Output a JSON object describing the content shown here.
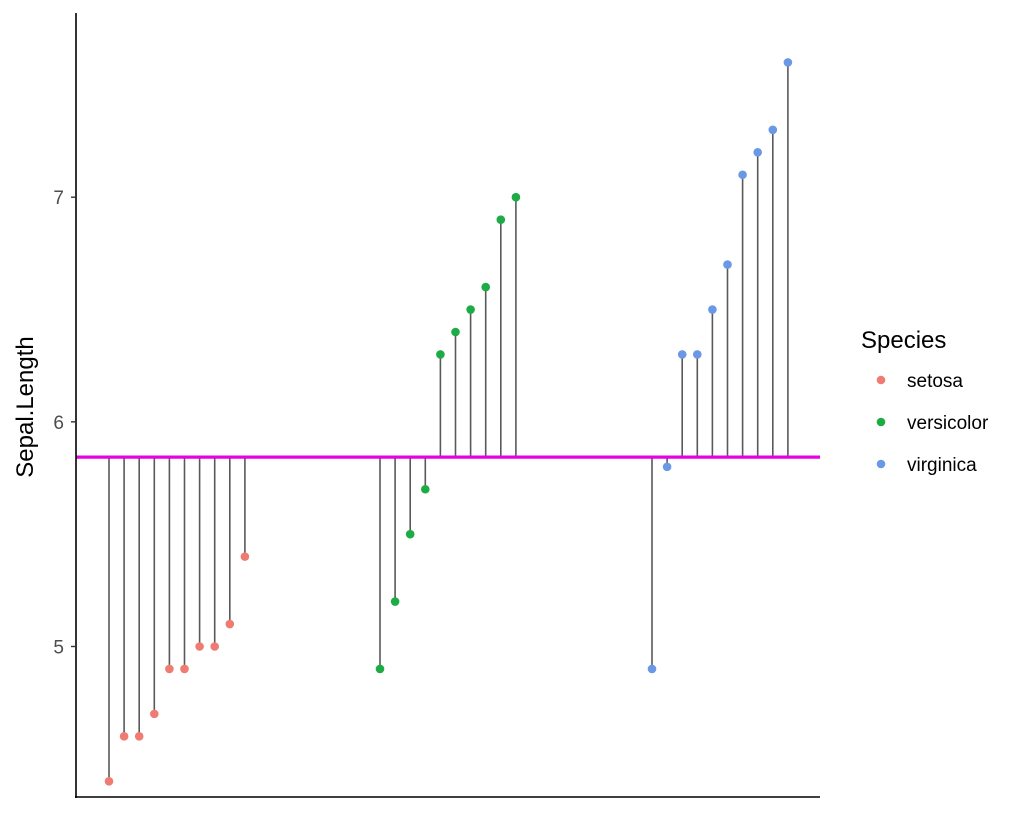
{
  "chart_data": {
    "type": "lollipop",
    "title": "",
    "xlabel": "",
    "ylabel": "Sepal.Length",
    "ylim": [
      4.33,
      7.82
    ],
    "yticks": [
      5,
      6,
      7
    ],
    "reference_line": {
      "y": 5.843,
      "color": "#e600e6"
    },
    "stem_color": "#595959",
    "grid": false,
    "legend": {
      "title": "Species",
      "position": "right"
    },
    "series": [
      {
        "name": "setosa",
        "color": "#f07b73",
        "values": [
          4.4,
          4.6,
          4.6,
          4.7,
          4.9,
          4.9,
          5.0,
          5.0,
          5.1,
          5.4
        ]
      },
      {
        "name": "versicolor",
        "color": "#1dab45",
        "values": [
          4.9,
          5.2,
          5.5,
          5.7,
          6.3,
          6.4,
          6.5,
          6.6,
          6.9,
          7.0
        ]
      },
      {
        "name": "virginica",
        "color": "#6a98e6",
        "values": [
          4.9,
          5.8,
          6.3,
          6.3,
          6.5,
          6.7,
          7.1,
          7.2,
          7.3,
          7.6
        ]
      }
    ]
  }
}
